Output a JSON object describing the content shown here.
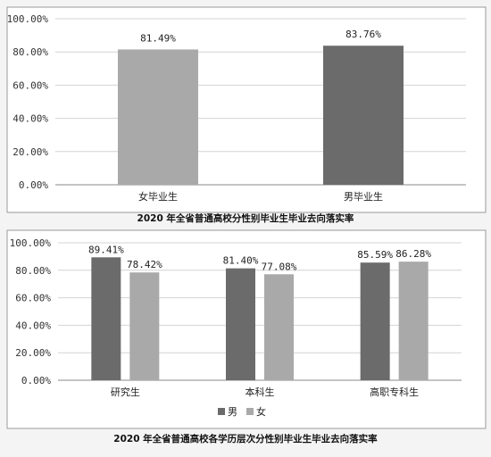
{
  "chart_data": [
    {
      "type": "bar",
      "title": "2020 年全省普通高校分性别毕业生毕业去向落实率",
      "categories": [
        "女毕业生",
        "男毕业生"
      ],
      "values": [
        81.49,
        83.76
      ],
      "data_labels": [
        "81.49%",
        "83.76%"
      ],
      "bar_colors": [
        "#a9a9a9",
        "#6b6b6b"
      ],
      "ylim": [
        0,
        100
      ],
      "yticks": [
        "0.00%",
        "20.00%",
        "40.00%",
        "60.00%",
        "80.00%",
        "100.00%"
      ],
      "grid": true,
      "legend": "none"
    },
    {
      "type": "bar",
      "title": "2020 年全省普通高校各学历层次分性别毕业生毕业去向落实率",
      "categories": [
        "研究生",
        "本科生",
        "高职专科生"
      ],
      "series": [
        {
          "name": "男",
          "values": [
            89.41,
            81.4,
            85.59
          ],
          "data_labels": [
            "89.41%",
            "81.40%",
            "85.59%"
          ],
          "color": "#6b6b6b"
        },
        {
          "name": "女",
          "values": [
            78.42,
            77.08,
            86.28
          ],
          "data_labels": [
            "78.42%",
            "77.08%",
            "86.28%"
          ],
          "color": "#a9a9a9"
        }
      ],
      "ylim": [
        0,
        100
      ],
      "yticks": [
        "0.00%",
        "20.00%",
        "40.00%",
        "60.00%",
        "80.00%",
        "100.00%"
      ],
      "grid": true,
      "legend": "bottom-center"
    }
  ]
}
